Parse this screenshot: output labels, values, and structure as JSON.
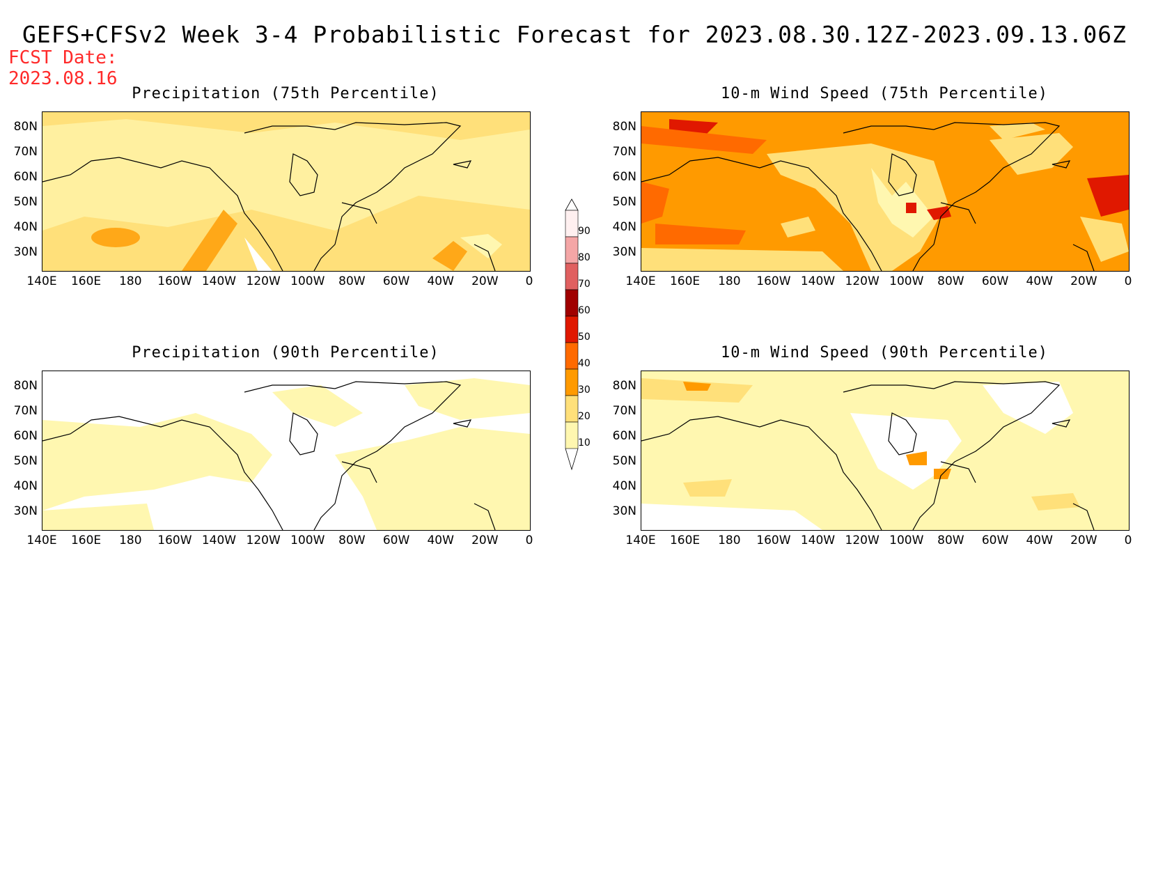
{
  "header": {
    "title": "GEFS+CFSv2 Week 3-4 Probabilistic Forecast for 2023.08.30.12Z-2023.09.13.06Z",
    "fcst_label": "FCST Date:",
    "fcst_date": "2023.08.16"
  },
  "axes": {
    "lat_ticks": [
      "80N",
      "70N",
      "60N",
      "50N",
      "40N",
      "30N"
    ],
    "lon_ticks": [
      "140E",
      "160E",
      "180",
      "160W",
      "140W",
      "120W",
      "100W",
      "80W",
      "60W",
      "40W",
      "20W",
      "0"
    ]
  },
  "panels": [
    {
      "id": "precip75",
      "title": "Precipitation (75th Percentile)",
      "background": "#fff7b0",
      "dominant_category": "20-30"
    },
    {
      "id": "wind75",
      "title": "10-m Wind Speed (75th Percentile)",
      "background": "#ff9a00",
      "dominant_category": "30-40"
    },
    {
      "id": "precip90",
      "title": "Precipitation (90th Percentile)",
      "background": "#ffffff",
      "dominant_category": "10-20"
    },
    {
      "id": "wind90",
      "title": "10-m Wind Speed (90th Percentile)",
      "background": "#fff7b0",
      "dominant_category": "10-20"
    }
  ],
  "colorbar": {
    "labels": [
      "90",
      "80",
      "70",
      "60",
      "50",
      "40",
      "30",
      "20",
      "10"
    ],
    "colors": [
      "#fff0f0",
      "#f4a6a6",
      "#e06060",
      "#a00000",
      "#e01800",
      "#ff6a00",
      "#ff9a00",
      "#ffe07a",
      "#fff7b0"
    ],
    "units": "%"
  }
}
